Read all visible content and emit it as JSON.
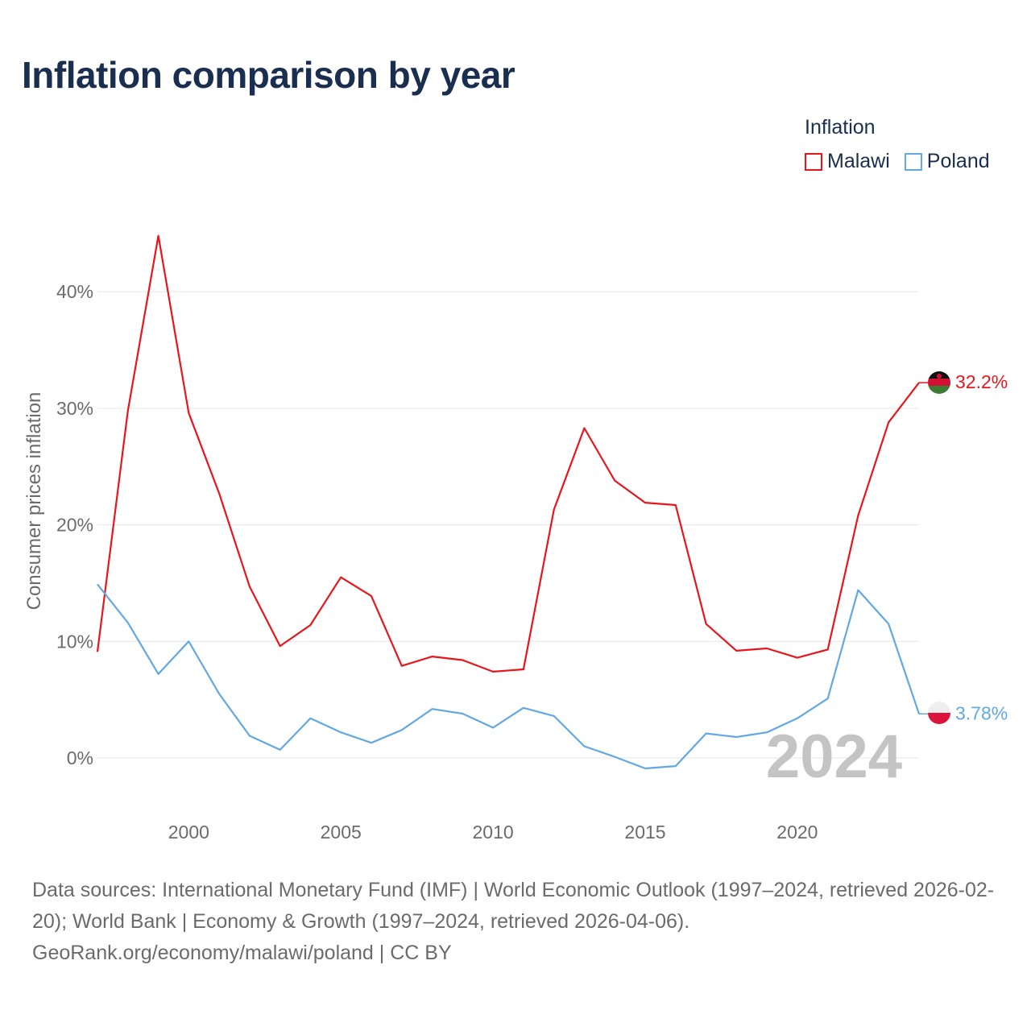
{
  "title": "Inflation comparison by year",
  "legend": {
    "title": "Inflation",
    "items": [
      {
        "label": "Malawi",
        "color": "#e8161b"
      },
      {
        "label": "Poland",
        "color": "#62a8e5"
      }
    ]
  },
  "year_watermark": "2024",
  "chart_data": {
    "type": "line",
    "title": "Inflation comparison by year",
    "xlabel": "",
    "ylabel": "Consumer prices inflation",
    "x": [
      1997,
      1998,
      1999,
      2000,
      2001,
      2002,
      2003,
      2004,
      2005,
      2006,
      2007,
      2008,
      2009,
      2010,
      2011,
      2012,
      2013,
      2014,
      2015,
      2016,
      2017,
      2018,
      2019,
      2020,
      2021,
      2022,
      2023,
      2024
    ],
    "xlim": [
      1997,
      2024
    ],
    "ylim": [
      -4.5,
      47
    ],
    "x_ticks": [
      "2000",
      "2005",
      "2010",
      "2015",
      "2020"
    ],
    "y_ticks": [
      "0%",
      "10%",
      "20%",
      "30%",
      "40%"
    ],
    "series": [
      {
        "name": "Malawi",
        "color": "#e8161b",
        "end_label": "32.2%",
        "values": [
          9.1,
          29.8,
          44.8,
          29.6,
          22.7,
          14.7,
          9.6,
          11.4,
          15.5,
          13.9,
          7.9,
          8.7,
          8.4,
          7.4,
          7.6,
          21.3,
          28.3,
          23.8,
          21.9,
          21.7,
          11.5,
          9.2,
          9.4,
          8.6,
          9.3,
          20.8,
          28.8,
          32.2
        ]
      },
      {
        "name": "Poland",
        "color": "#62a8e5",
        "end_label": "3.78%",
        "values": [
          14.9,
          11.6,
          7.2,
          10.0,
          5.5,
          1.9,
          0.7,
          3.4,
          2.2,
          1.3,
          2.4,
          4.2,
          3.8,
          2.6,
          4.3,
          3.6,
          1.0,
          0.1,
          -0.9,
          -0.7,
          2.1,
          1.8,
          2.2,
          3.4,
          5.1,
          14.4,
          11.5,
          3.78
        ]
      }
    ]
  },
  "footer": {
    "sources": "Data sources: International Monetary Fund (IMF) | World Economic Outlook (1997–2024, retrieved 2026-02-20); World Bank | Economy & Growth (1997–2024, retrieved 2026-04-06).",
    "credit": "GeoRank.org/economy/malawi/poland | CC BY"
  }
}
